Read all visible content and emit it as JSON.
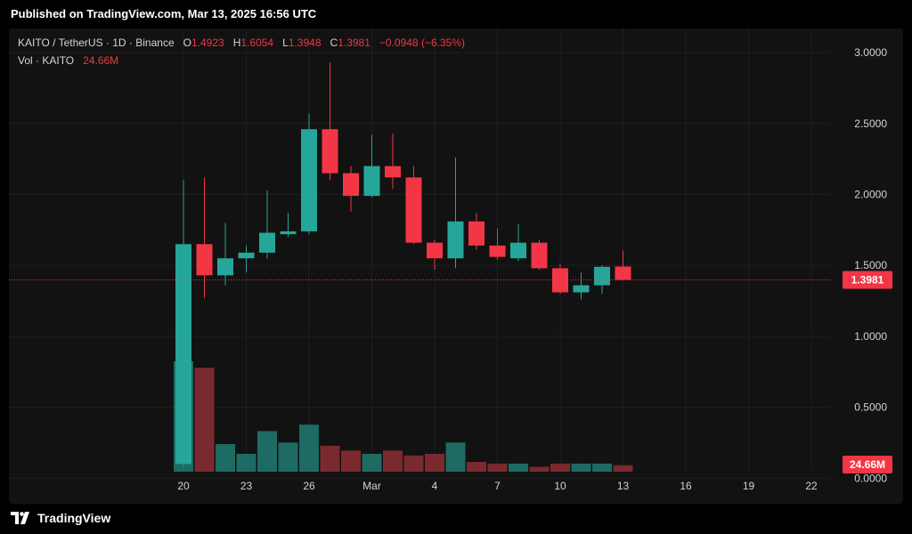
{
  "header": {
    "published": "Published on TradingView.com, Mar 13, 2025 16:56 UTC"
  },
  "legend": {
    "symbol": "KAITO / TetherUS · 1D · Binance",
    "open_label": "O",
    "open": "1.4923",
    "high_label": "H",
    "high": "1.6054",
    "low_label": "L",
    "low": "1.3948",
    "close_label": "C",
    "close": "1.3981",
    "change": "−0.0948 (−6.35%)",
    "vol_label": "Vol · KAITO",
    "vol_value": "24.66M"
  },
  "price_badge": "1.3981",
  "volume_badge": "24.66M",
  "footer": {
    "brand": "TradingView"
  },
  "colors": {
    "up": "#26a69a",
    "down": "#f23645",
    "up_vol": "#1d6b63",
    "down_vol": "#7a2a2e",
    "background": "#121212"
  },
  "chart_data": {
    "type": "candlestick",
    "y_axis": {
      "ticks": [
        "3.0000",
        "2.5000",
        "2.0000",
        "1.5000",
        "1.0000",
        "0.5000",
        "0.0000"
      ],
      "range": [
        -0.18,
        3.17
      ]
    },
    "x_axis": {
      "ticks": [
        "20",
        "23",
        "26",
        "Mar",
        "4",
        "7",
        "10",
        "13",
        "16",
        "19",
        "22"
      ]
    },
    "current_price": 1.3981,
    "candles": [
      {
        "date": "Feb 20",
        "o": 0.1,
        "h": 2.1,
        "l": 0.08,
        "c": 1.65,
        "v": 0.68
      },
      {
        "date": "Feb 21",
        "o": 1.65,
        "h": 2.12,
        "l": 1.27,
        "c": 1.43,
        "v": 0.64
      },
      {
        "date": "Feb 22",
        "o": 1.43,
        "h": 1.8,
        "l": 1.36,
        "c": 1.55,
        "v": 0.17
      },
      {
        "date": "Feb 23",
        "o": 1.55,
        "h": 1.64,
        "l": 1.45,
        "c": 1.59,
        "v": 0.11
      },
      {
        "date": "Feb 24",
        "o": 1.59,
        "h": 2.03,
        "l": 1.55,
        "c": 1.73,
        "v": 0.25
      },
      {
        "date": "Feb 25",
        "o": 1.72,
        "h": 1.87,
        "l": 1.7,
        "c": 1.74,
        "v": 0.18
      },
      {
        "date": "Feb 26",
        "o": 1.74,
        "h": 2.57,
        "l": 1.72,
        "c": 2.46,
        "v": 0.29
      },
      {
        "date": "Feb 27",
        "o": 2.46,
        "h": 2.93,
        "l": 2.1,
        "c": 2.15,
        "v": 0.16
      },
      {
        "date": "Feb 28",
        "o": 2.15,
        "h": 2.2,
        "l": 1.88,
        "c": 1.99,
        "v": 0.13
      },
      {
        "date": "Mar 1",
        "o": 1.99,
        "h": 2.42,
        "l": 1.98,
        "c": 2.2,
        "v": 0.11
      },
      {
        "date": "Mar 2",
        "o": 2.2,
        "h": 2.43,
        "l": 2.04,
        "c": 2.12,
        "v": 0.13
      },
      {
        "date": "Mar 3",
        "o": 2.12,
        "h": 2.2,
        "l": 1.65,
        "c": 1.66,
        "v": 0.1
      },
      {
        "date": "Mar 4",
        "o": 1.66,
        "h": 1.68,
        "l": 1.47,
        "c": 1.55,
        "v": 0.11
      },
      {
        "date": "Mar 5",
        "o": 1.55,
        "h": 2.26,
        "l": 1.48,
        "c": 1.81,
        "v": 0.18
      },
      {
        "date": "Mar 6",
        "o": 1.81,
        "h": 1.87,
        "l": 1.61,
        "c": 1.64,
        "v": 0.06
      },
      {
        "date": "Mar 7",
        "o": 1.64,
        "h": 1.76,
        "l": 1.54,
        "c": 1.56,
        "v": 0.05
      },
      {
        "date": "Mar 8",
        "o": 1.55,
        "h": 1.79,
        "l": 1.53,
        "c": 1.66,
        "v": 0.05
      },
      {
        "date": "Mar 9",
        "o": 1.66,
        "h": 1.68,
        "l": 1.47,
        "c": 1.48,
        "v": 0.03
      },
      {
        "date": "Mar 10",
        "o": 1.48,
        "h": 1.51,
        "l": 1.3,
        "c": 1.31,
        "v": 0.05
      },
      {
        "date": "Mar 11",
        "o": 1.31,
        "h": 1.45,
        "l": 1.26,
        "c": 1.36,
        "v": 0.05
      },
      {
        "date": "Mar 12",
        "o": 1.36,
        "h": 1.5,
        "l": 1.3,
        "c": 1.49,
        "v": 0.05
      },
      {
        "date": "Mar 13",
        "o": 1.4923,
        "h": 1.6054,
        "l": 1.3948,
        "c": 1.3981,
        "v": 0.04
      }
    ]
  }
}
